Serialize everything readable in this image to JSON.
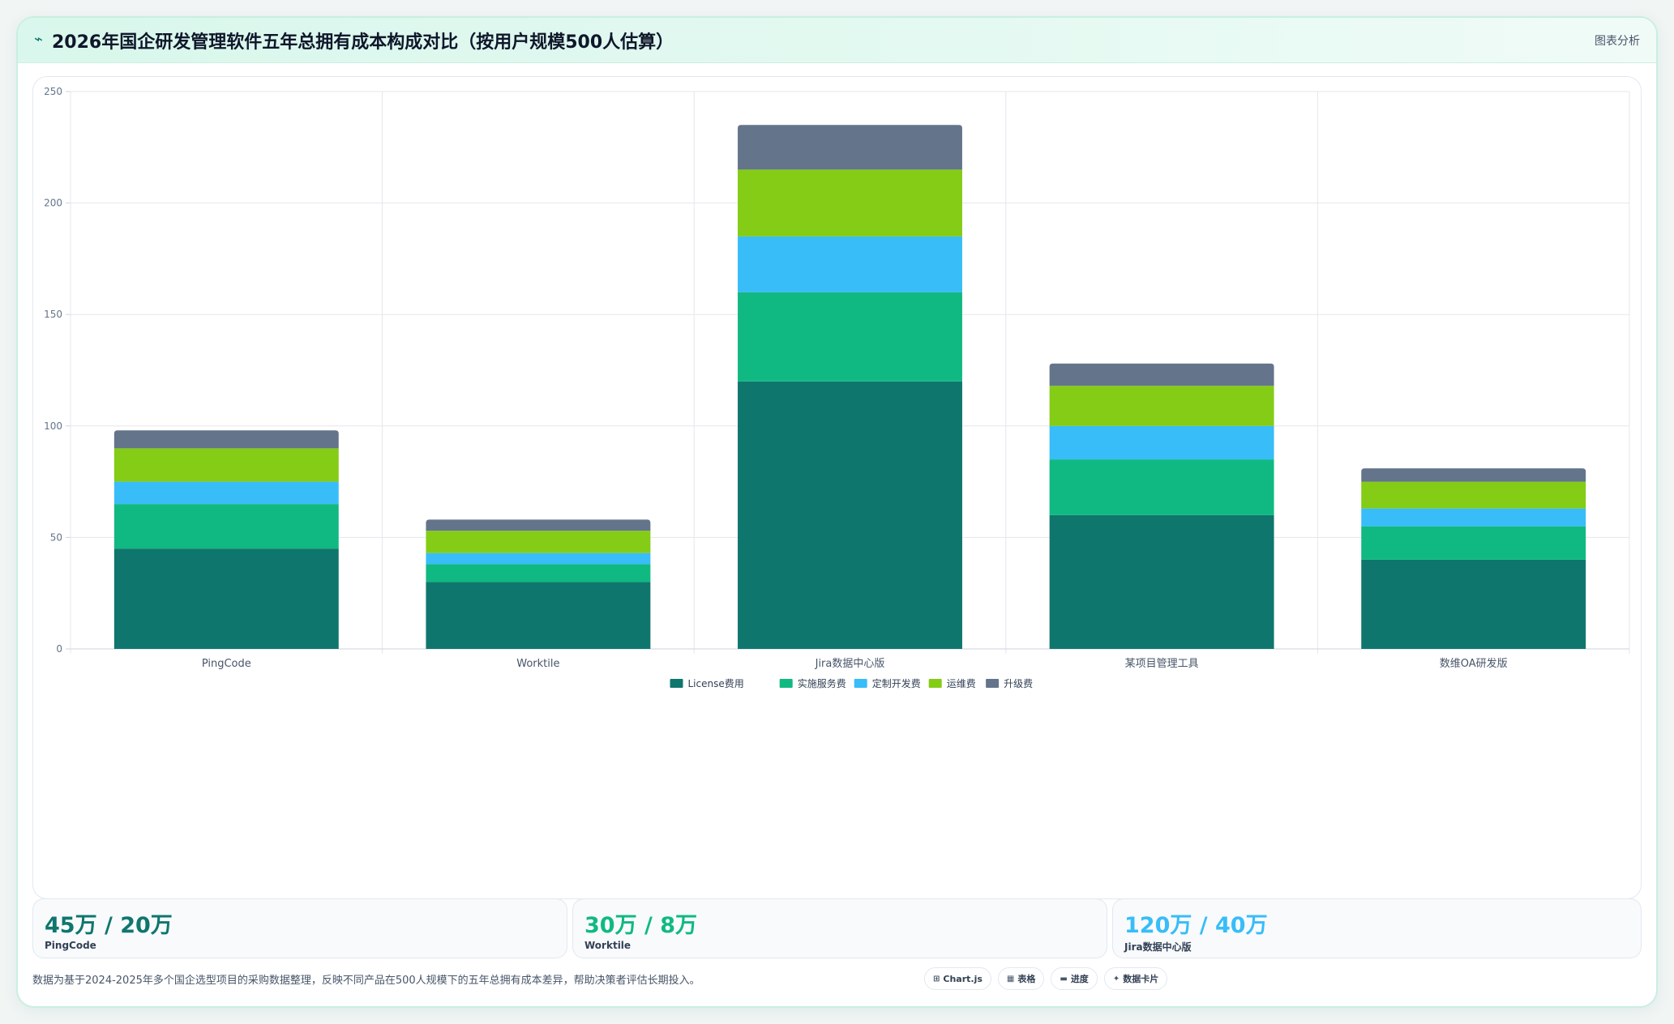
{
  "header": {
    "title": "2026年国企研发管理软件五年总拥有成本构成对比（按用户规模500人估算）",
    "link_label": "图表分析"
  },
  "colors": {
    "license": "#0f766e",
    "implementation": "#10b981",
    "custom": "#38bdf8",
    "ops": "#84cc16",
    "upgrade": "#64748b"
  },
  "chart_data": {
    "type": "bar",
    "stacked": true,
    "categories": [
      "PingCode",
      "Worktile",
      "Jira数据中心版",
      "某项目管理工具",
      "数维OA研发版"
    ],
    "series": [
      {
        "name": "License费用",
        "color": "#0f766e",
        "values": [
          45,
          30,
          120,
          60,
          40
        ]
      },
      {
        "name": "实施服务费",
        "color": "#10b981",
        "values": [
          20,
          8,
          40,
          25,
          15
        ]
      },
      {
        "name": "定制开发费",
        "color": "#38bdf8",
        "values": [
          10,
          5,
          25,
          15,
          8
        ]
      },
      {
        "name": "运维费",
        "color": "#84cc16",
        "values": [
          15,
          10,
          30,
          18,
          12
        ]
      },
      {
        "name": "升级费",
        "color": "#64748b",
        "values": [
          8,
          5,
          20,
          10,
          6
        ]
      }
    ],
    "yticks": [
      "0",
      "50",
      "100",
      "150",
      "200",
      "250"
    ],
    "ylim": [
      0,
      250
    ],
    "grid": true,
    "legend": "bottom"
  },
  "stats": [
    {
      "value": "45万 / 20万",
      "label": "PingCode",
      "color": "#0f766e"
    },
    {
      "value": "30万 / 8万",
      "label": "Worktile",
      "color": "#10b981"
    },
    {
      "value": "120万 / 40万",
      "label": "Jira数据中心版",
      "color": "#38bdf8"
    }
  ],
  "footnote": "数据为基于2024-2025年多个国企选型项目的采购数据整理，反映不同产品在500人规模下的五年总拥有成本差异，帮助决策者评估长期投入。",
  "tools": [
    {
      "icon": "⊞",
      "label": "Chart.js"
    },
    {
      "icon": "▦",
      "label": "表格"
    },
    {
      "icon": "▬",
      "label": "进度"
    },
    {
      "icon": "✦",
      "label": "数据卡片"
    }
  ]
}
